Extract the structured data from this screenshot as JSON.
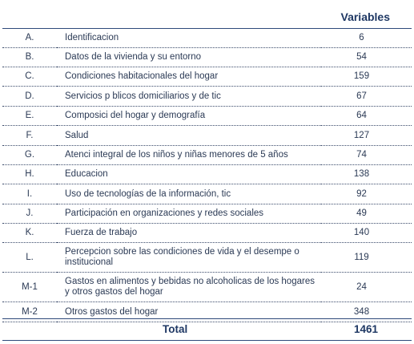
{
  "header": {
    "title": "Variables"
  },
  "rows": [
    {
      "code": "A.",
      "label": "Identificacion",
      "count": "6"
    },
    {
      "code": "B.",
      "label": "Datos de la vivienda y su entorno",
      "count": "54"
    },
    {
      "code": "C.",
      "label": "Condiciones habitacionales del hogar",
      "count": "159"
    },
    {
      "code": "D.",
      "label": "Servicios p blicos domiciliarios y de tic",
      "count": "67"
    },
    {
      "code": "E.",
      "label": "Composici del hogar y demografía",
      "count": "64"
    },
    {
      "code": "F.",
      "label": "Salud",
      "count": "127"
    },
    {
      "code": "G.",
      "label": "Atenci integral de los niños y niñas menores de 5 años",
      "count": "74"
    },
    {
      "code": "H.",
      "label": "Educacion",
      "count": "138"
    },
    {
      "code": "I.",
      "label": "Uso de tecnologías de la información, tic",
      "count": "92"
    },
    {
      "code": "J.",
      "label": "Participación en organizaciones y redes sociales",
      "count": "49"
    },
    {
      "code": "K.",
      "label": "Fuerza de trabajo",
      "count": "140"
    },
    {
      "code": "L.",
      "label": "Percepcion sobre las condiciones de vida y el desempe o institucional",
      "count": "119"
    },
    {
      "code": "M-1",
      "label": "Gastos en alimentos y bebidas no alcoholicas de los hogares y otros gastos del hogar",
      "count": "24"
    },
    {
      "code": "M-2",
      "label": "Otros gastos del hogar",
      "count": "348"
    }
  ],
  "total": {
    "label": "Total",
    "value": "1461"
  }
}
